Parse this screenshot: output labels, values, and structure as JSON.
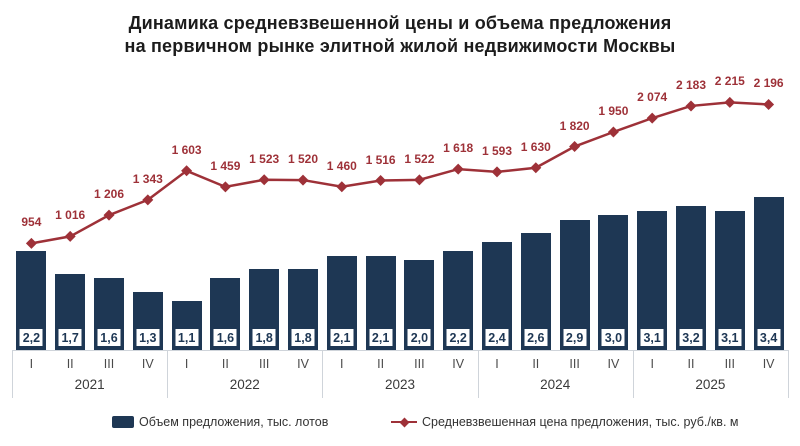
{
  "title": {
    "line1": "Динамика средневзвешенной цены и объема предложения",
    "line2": "на первичном рынке элитной жилой недвижимости Москвы"
  },
  "chart_data": {
    "type": "bar+line combo",
    "groups": [
      {
        "year": "2021",
        "quarters": [
          "I",
          "II",
          "III",
          "IV"
        ]
      },
      {
        "year": "2022",
        "quarters": [
          "I",
          "II",
          "III",
          "IV"
        ]
      },
      {
        "year": "2023",
        "quarters": [
          "I",
          "II",
          "III",
          "IV"
        ]
      },
      {
        "year": "2024",
        "quarters": [
          "I",
          "II",
          "III",
          "IV"
        ]
      },
      {
        "year": "2025",
        "quarters": [
          "I",
          "II",
          "III",
          "IV"
        ]
      }
    ],
    "series": [
      {
        "name": "Объем предложения, тыс. лотов",
        "type": "bar",
        "color": "#1e3754",
        "values": [
          2.2,
          1.7,
          1.6,
          1.3,
          1.1,
          1.6,
          1.8,
          1.8,
          2.1,
          2.1,
          2.0,
          2.2,
          2.4,
          2.6,
          2.9,
          3.0,
          3.1,
          3.2,
          3.1,
          3.4
        ],
        "labels": [
          "2,2",
          "1,7",
          "1,6",
          "1,3",
          "1,1",
          "1,6",
          "1,8",
          "1,8",
          "2,1",
          "2,1",
          "2,0",
          "2,2",
          "2,4",
          "2,6",
          "2,9",
          "3,0",
          "3,1",
          "3,2",
          "3,1",
          "3,4"
        ]
      },
      {
        "name": "Средневзвешенная цена предложения, тыс. руб./кв. м",
        "type": "line",
        "color": "#9e3138",
        "values": [
          954,
          1016,
          1206,
          1343,
          1603,
          1459,
          1523,
          1520,
          1460,
          1516,
          1522,
          1618,
          1593,
          1630,
          1820,
          1950,
          2074,
          2183,
          2215,
          2196
        ],
        "labels": [
          "954",
          "1 016",
          "1 206",
          "1 343",
          "1 603",
          "1 459",
          "1 523",
          "1 520",
          "1 460",
          "1 516",
          "1 522",
          "1 618",
          "1 593",
          "1 630",
          "1 820",
          "1 950",
          "2 074",
          "2 183",
          "2 215",
          "2 196"
        ]
      }
    ],
    "value_labels_visible": true,
    "axes_visible": false,
    "legend_position": "bottom",
    "bar_axis_range": [
      0,
      3.4
    ],
    "line_axis_range": [
      954,
      2215
    ]
  }
}
